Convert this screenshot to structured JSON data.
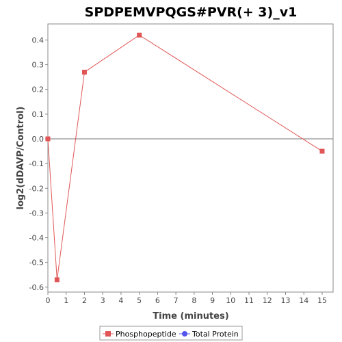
{
  "chart_data": {
    "type": "line",
    "title": "SPDPEMVPQGS#PVR(+ 3)_v1",
    "xlabel": "Time (minutes)",
    "ylabel": "log2(dDAVP/Control)",
    "xlim": [
      0,
      15.6
    ],
    "ylim": [
      -0.62,
      0.465
    ],
    "x_ticks": [
      0,
      1,
      2,
      3,
      4,
      5,
      6,
      7,
      8,
      9,
      10,
      11,
      12,
      13,
      14,
      15
    ],
    "y_ticks": [
      -0.6,
      -0.5,
      -0.4,
      -0.3,
      -0.2,
      -0.1,
      0.0,
      0.1,
      0.2,
      0.3,
      0.4
    ],
    "y_tick_labels": [
      "-0.6",
      "-0.5",
      "-0.4",
      "-0.3",
      "-0.2",
      "-0.1",
      "0.0",
      "0.1",
      "0.2",
      "0.3",
      "0.4"
    ],
    "zero_line": true,
    "grid": false,
    "legend_position": "bottom",
    "series": [
      {
        "name": "Phosphopeptide",
        "color": "#e05555",
        "marker": "square",
        "x": [
          0,
          0.5,
          2,
          5,
          15
        ],
        "y": [
          0.0,
          -0.57,
          0.27,
          0.42,
          -0.05
        ]
      },
      {
        "name": "Total Protein",
        "color": "#5555ee",
        "marker": "circle",
        "x": [],
        "y": []
      }
    ]
  }
}
